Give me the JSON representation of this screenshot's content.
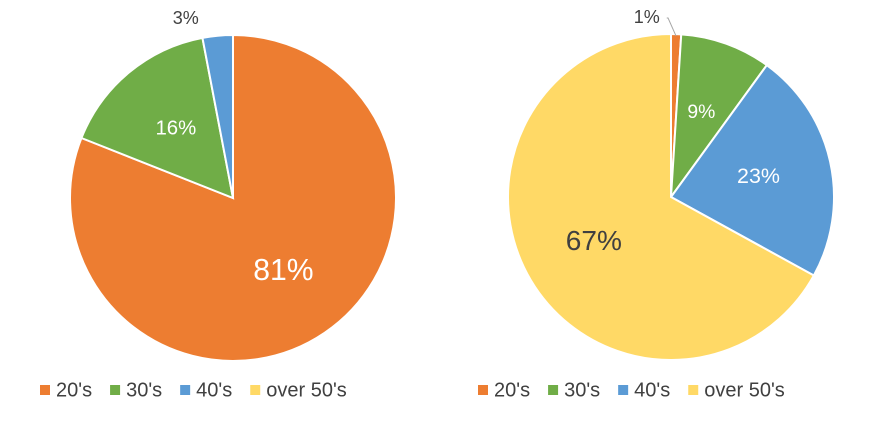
{
  "chart_data": [
    {
      "type": "pie",
      "categories": [
        "20's",
        "30's",
        "40's",
        "over 50's"
      ],
      "values": [
        81,
        16,
        3,
        0
      ],
      "value_labels": [
        "81%",
        "16%",
        "3%",
        null
      ],
      "colors": [
        "#ED7D31",
        "#70AD47",
        "#5B9BD5",
        "#FFD966"
      ],
      "legend": "bottom"
    },
    {
      "type": "pie",
      "categories": [
        "20's",
        "30's",
        "40's",
        "over 50's"
      ],
      "values": [
        1,
        9,
        23,
        67
      ],
      "value_labels": [
        "1%",
        "9%",
        "23%",
        "67%"
      ],
      "colors": [
        "#ED7D31",
        "#70AD47",
        "#5B9BD5",
        "#FFD966"
      ],
      "legend": "bottom"
    }
  ]
}
